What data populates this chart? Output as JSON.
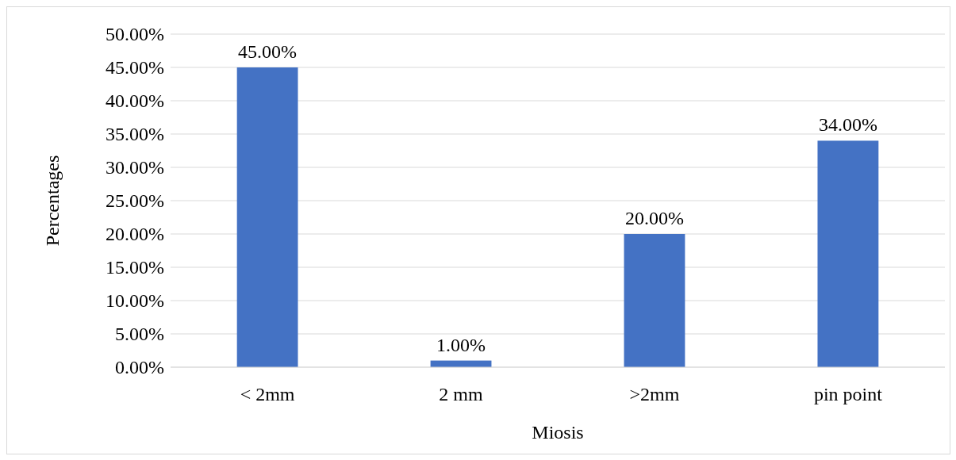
{
  "chart_data": {
    "type": "bar",
    "xlabel": "Miosis",
    "ylabel": "Percentages",
    "categories": [
      "< 2mm",
      "2 mm",
      ">2mm",
      "pin point"
    ],
    "values": [
      45,
      1,
      20,
      34
    ],
    "color": "#4472c4",
    "value_labels": [
      "45.00%",
      "1.00%",
      "20.00%",
      "34.00%"
    ],
    "ylim": [
      0,
      50
    ],
    "yticks": [
      {
        "value": 0,
        "label": "0.00%"
      },
      {
        "value": 5,
        "label": "5.00%"
      },
      {
        "value": 10,
        "label": "10.00%"
      },
      {
        "value": 15,
        "label": "15.00%"
      },
      {
        "value": 20,
        "label": "20.00%"
      },
      {
        "value": 25,
        "label": "25.00%"
      },
      {
        "value": 30,
        "label": "30.00%"
      },
      {
        "value": 35,
        "label": "35.00%"
      },
      {
        "value": 40,
        "label": "40.00%"
      },
      {
        "value": 45,
        "label": "45.00%"
      },
      {
        "value": 50,
        "label": "50.00%"
      }
    ],
    "grid": "y"
  }
}
